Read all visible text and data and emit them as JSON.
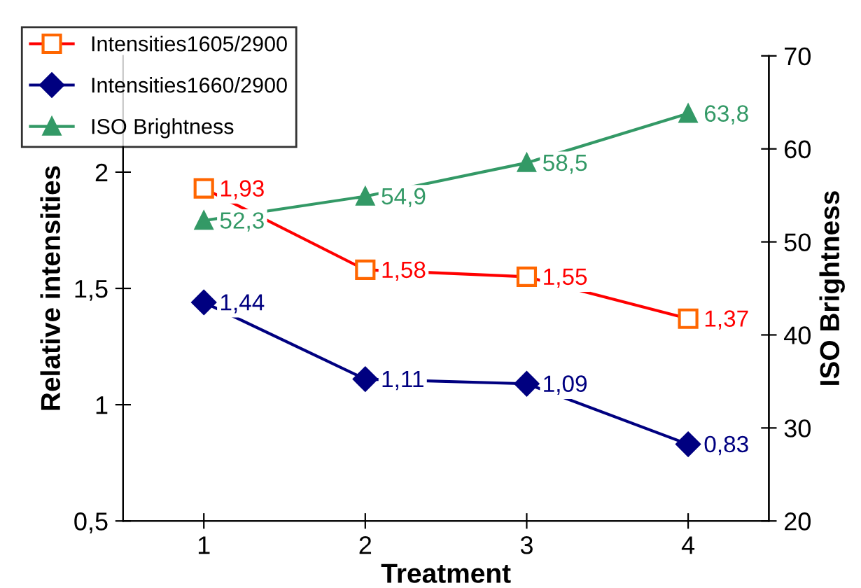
{
  "chart_data": {
    "type": "line",
    "xlabel": "Treatment",
    "ylabel": "Relative intensities",
    "y2label": "ISO Brightness",
    "x": [
      1,
      2,
      3,
      4
    ],
    "xlim": [
      0.5,
      4.5
    ],
    "xticks": [
      1,
      2,
      3,
      4
    ],
    "ylim": [
      0.5,
      2.5
    ],
    "yticks": [
      {
        "value": 0.5,
        "label": "0,5"
      },
      1,
      {
        "value": 1.5,
        "label": "1,5"
      },
      2
    ],
    "y2lim": [
      20,
      70
    ],
    "y2ticks": [
      20,
      30,
      40,
      50,
      60,
      70
    ],
    "legend": "top left",
    "grid": false,
    "line_style": "solid",
    "series": [
      {
        "name": "Intensities1605/2900",
        "color": "#ff0000",
        "marker": "square",
        "values": [
          1.93,
          1.58,
          1.55,
          1.37
        ],
        "value_labels": [
          "1,93",
          "1,58",
          "1,55",
          "1,37"
        ]
      },
      {
        "name": "Intensities1660/2900",
        "color": "#000080",
        "marker": "diamond",
        "values": [
          1.44,
          1.11,
          1.09,
          0.83
        ],
        "value_labels": [
          "1,44",
          "1,11",
          "1,09",
          "0,83"
        ]
      },
      {
        "name": "ISO Brightness",
        "color": "#339966",
        "marker": "triangle",
        "axis": "y2",
        "values": [
          52.3,
          54.9,
          58.5,
          63.8
        ],
        "value_labels": [
          "52,3",
          "54,9",
          "58,5",
          "63,8"
        ]
      }
    ]
  }
}
